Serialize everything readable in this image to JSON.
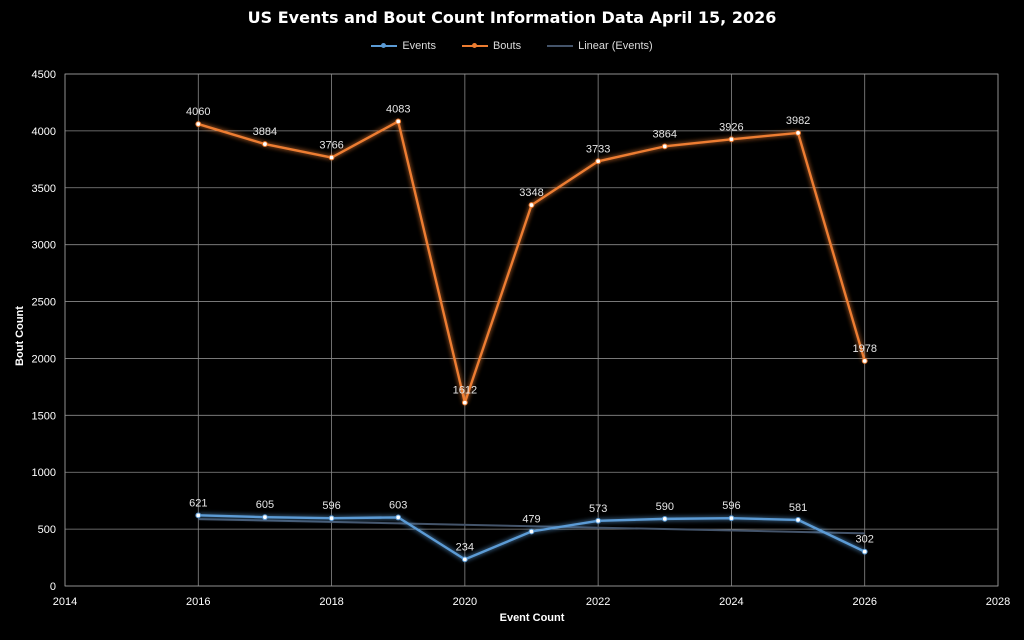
{
  "chart_data": {
    "type": "line",
    "title": "US Events and Bout Count Information Data April 15, 2026",
    "xlabel": "Event Count",
    "ylabel": "Bout Count",
    "xlim": [
      2014,
      2028
    ],
    "ylim": [
      0,
      4500
    ],
    "xticks": [
      2014,
      2016,
      2018,
      2020,
      2022,
      2024,
      2026,
      2028
    ],
    "yticks": [
      0,
      500,
      1000,
      1500,
      2000,
      2500,
      3000,
      3500,
      4000,
      4500
    ],
    "grid": true,
    "legend": "top-center",
    "x": [
      2016,
      2017,
      2018,
      2019,
      2020,
      2021,
      2022,
      2023,
      2024,
      2025,
      2026
    ],
    "series": [
      {
        "name": "Events",
        "color": "#5b9bd5",
        "labels": true,
        "values": [
          621,
          605,
          596,
          603,
          234,
          479,
          573,
          590,
          596,
          581,
          302
        ]
      },
      {
        "name": "Bouts",
        "color": "#ed7d31",
        "labels": true,
        "values": [
          4060,
          3884,
          3766,
          4083,
          1612,
          3348,
          3733,
          3864,
          3926,
          3982,
          1978
        ]
      }
    ],
    "trendline": {
      "name": "Linear (Events)",
      "of": "Events",
      "type": "linear",
      "color": "#44546a"
    }
  }
}
